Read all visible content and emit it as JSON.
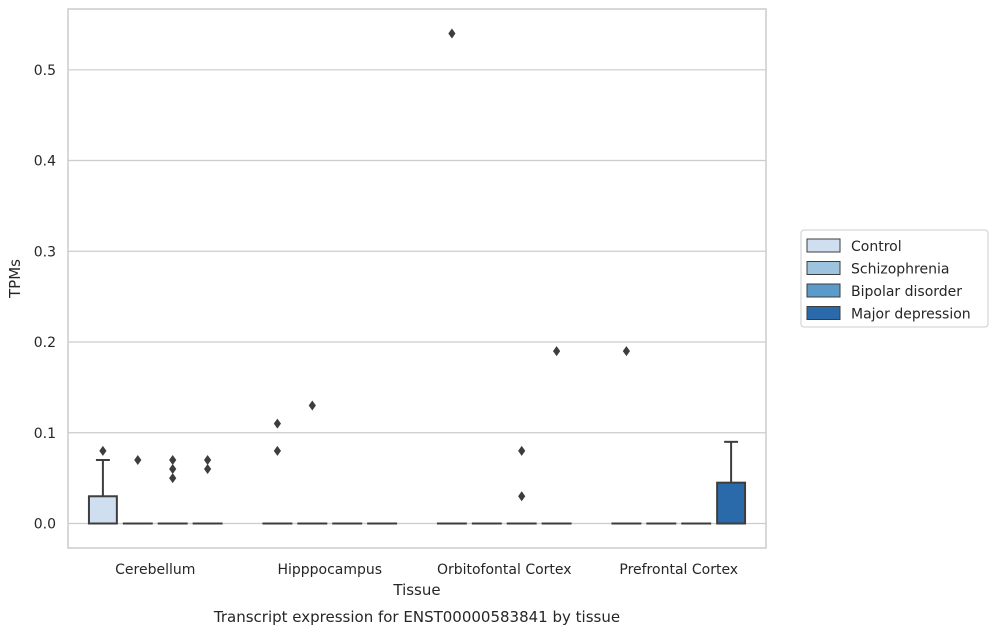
{
  "chart_data": {
    "type": "box",
    "title": "",
    "caption": "Transcript expression for ENST00000583841 by tissue",
    "xlabel": "Tissue",
    "ylabel": "TPMs",
    "ylim": [
      -0.027,
      0.567
    ],
    "yticks": [
      0.0,
      0.1,
      0.2,
      0.3,
      0.4,
      0.5
    ],
    "ytick_labels": [
      "0.0",
      "0.1",
      "0.2",
      "0.3",
      "0.4",
      "0.5"
    ],
    "categories": [
      "Cerebellum",
      "Hipppocampus",
      "Orbitofontal Cortex",
      "Prefrontal Cortex"
    ],
    "grid": "horizontal",
    "legend_position": "right",
    "series": [
      {
        "name": "Control",
        "color": "#d0dff0",
        "boxes": [
          {
            "category": "Cerebellum",
            "q1": 0.0,
            "median": 0.0,
            "q3": 0.03,
            "whisker_low": 0.0,
            "whisker_high": 0.07,
            "outliers": [
              0.08
            ]
          },
          {
            "category": "Hipppocampus",
            "q1": 0.0,
            "median": 0.0,
            "q3": 0.0,
            "whisker_low": 0.0,
            "whisker_high": 0.0,
            "outliers": [
              0.08,
              0.11
            ]
          },
          {
            "category": "Orbitofontal Cortex",
            "q1": 0.0,
            "median": 0.0,
            "q3": 0.0,
            "whisker_low": 0.0,
            "whisker_high": 0.0,
            "outliers": [
              0.54
            ]
          },
          {
            "category": "Prefrontal Cortex",
            "q1": 0.0,
            "median": 0.0,
            "q3": 0.0,
            "whisker_low": 0.0,
            "whisker_high": 0.0,
            "outliers": [
              0.19
            ]
          }
        ]
      },
      {
        "name": "Schizophrenia",
        "color": "#9dc3de",
        "boxes": [
          {
            "category": "Cerebellum",
            "q1": 0.0,
            "median": 0.0,
            "q3": 0.0,
            "whisker_low": 0.0,
            "whisker_high": 0.0,
            "outliers": [
              0.07
            ]
          },
          {
            "category": "Hipppocampus",
            "q1": 0.0,
            "median": 0.0,
            "q3": 0.0,
            "whisker_low": 0.0,
            "whisker_high": 0.0,
            "outliers": [
              0.13
            ]
          },
          {
            "category": "Orbitofontal Cortex",
            "q1": 0.0,
            "median": 0.0,
            "q3": 0.0,
            "whisker_low": 0.0,
            "whisker_high": 0.0,
            "outliers": []
          },
          {
            "category": "Prefrontal Cortex",
            "q1": 0.0,
            "median": 0.0,
            "q3": 0.0,
            "whisker_low": 0.0,
            "whisker_high": 0.0,
            "outliers": []
          }
        ]
      },
      {
        "name": "Bipolar disorder",
        "color": "#5b9bc9",
        "boxes": [
          {
            "category": "Cerebellum",
            "q1": 0.0,
            "median": 0.0,
            "q3": 0.0,
            "whisker_low": 0.0,
            "whisker_high": 0.0,
            "outliers": [
              0.05,
              0.06,
              0.07
            ]
          },
          {
            "category": "Hipppocampus",
            "q1": 0.0,
            "median": 0.0,
            "q3": 0.0,
            "whisker_low": 0.0,
            "whisker_high": 0.0,
            "outliers": []
          },
          {
            "category": "Orbitofontal Cortex",
            "q1": 0.0,
            "median": 0.0,
            "q3": 0.0,
            "whisker_low": 0.0,
            "whisker_high": 0.0,
            "outliers": [
              0.03,
              0.08
            ]
          },
          {
            "category": "Prefrontal Cortex",
            "q1": 0.0,
            "median": 0.0,
            "q3": 0.0,
            "whisker_low": 0.0,
            "whisker_high": 0.0,
            "outliers": []
          }
        ]
      },
      {
        "name": "Major depression",
        "color": "#2a6aaa",
        "boxes": [
          {
            "category": "Cerebellum",
            "q1": 0.0,
            "median": 0.0,
            "q3": 0.0,
            "whisker_low": 0.0,
            "whisker_high": 0.0,
            "outliers": [
              0.06,
              0.07
            ]
          },
          {
            "category": "Hipppocampus",
            "q1": 0.0,
            "median": 0.0,
            "q3": 0.0,
            "whisker_low": 0.0,
            "whisker_high": 0.0,
            "outliers": []
          },
          {
            "category": "Orbitofontal Cortex",
            "q1": 0.0,
            "median": 0.0,
            "q3": 0.0,
            "whisker_low": 0.0,
            "whisker_high": 0.0,
            "outliers": [
              0.19
            ]
          },
          {
            "category": "Prefrontal Cortex",
            "q1": 0.0,
            "median": 0.0,
            "q3": 0.045,
            "whisker_low": 0.0,
            "whisker_high": 0.09,
            "outliers": []
          }
        ]
      }
    ]
  }
}
